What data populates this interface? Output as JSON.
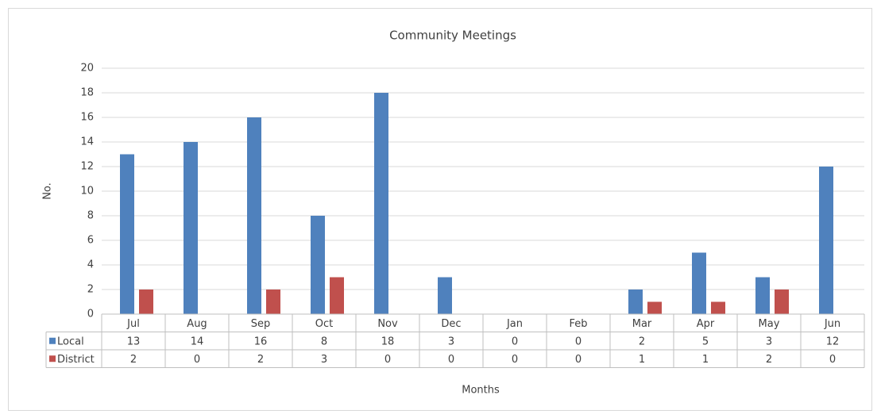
{
  "chart_data": {
    "type": "bar",
    "title": "Community Meetings",
    "x_label": "Months",
    "y_label": "No.",
    "categories": [
      "Jul",
      "Aug",
      "Sep",
      "Oct",
      "Nov",
      "Dec",
      "Jan",
      "Feb",
      "Mar",
      "Apr",
      "May",
      "Jun"
    ],
    "series": [
      {
        "name": "Local",
        "color": "#4f81bd",
        "values": [
          13,
          14,
          16,
          8,
          18,
          3,
          0,
          0,
          2,
          5,
          3,
          12
        ]
      },
      {
        "name": "District",
        "color": "#c0504d",
        "values": [
          2,
          0,
          2,
          3,
          0,
          0,
          0,
          0,
          1,
          1,
          2,
          0
        ]
      }
    ],
    "ylim": [
      0,
      20
    ],
    "yticks": [
      0,
      2,
      4,
      6,
      8,
      10,
      12,
      14,
      16,
      18,
      20
    ],
    "grid": true,
    "data_table": true
  }
}
